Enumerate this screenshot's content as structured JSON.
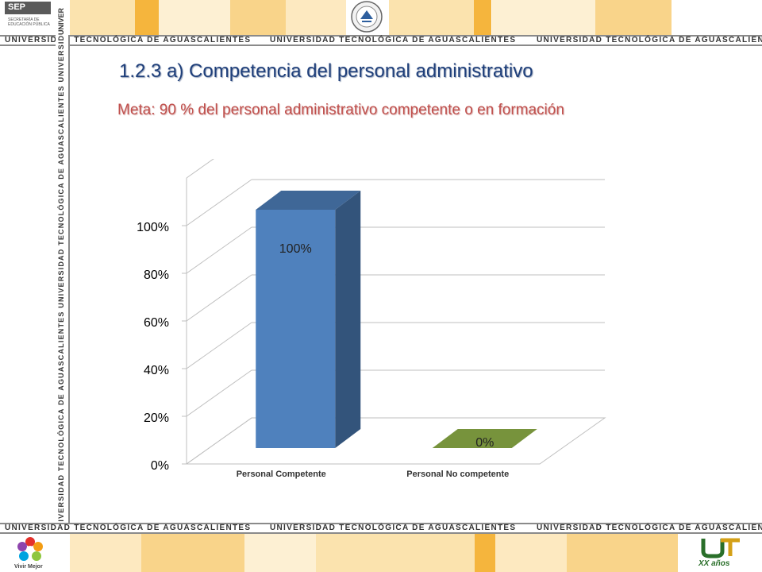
{
  "header": {
    "sep_logo_text": "SEP",
    "sep_logo_sub": "SECRETARÍA DE EDUCACIÓN PÚBLICA",
    "corner_word": "UNIVER"
  },
  "strip_text": "UNIVERSIDAD TECNOLÓGICA DE AGUASCALIENTES",
  "vertical_strip_text": "UNIVERSIDAD TECNOLÓGICA DE AGUASCALIENTES     UNIVERSIDAD TECNOLÓGICA DE AGUASCALIENTES     UNIVERSIDAD TECNOLÓGICA DE AGUASCALIENTES",
  "slide": {
    "title": "1.2.3 a) Competencia del personal administrativo",
    "subtitle": "Meta: 90 % del personal administrativo  competente o en formación"
  },
  "footer": {
    "left_logo_caption": "Vivir Mejor",
    "right_logo_caption": "XX años"
  },
  "colors": {
    "band_orange": "#f5b53d",
    "band_light": "#fbe3ae",
    "title": "#1f3f7a",
    "subtitle": "#c0504d",
    "bar_competente": "#4f81bd",
    "bar_no_competente": "#77933c"
  },
  "chart_data": {
    "type": "bar",
    "style": "3d-column",
    "categories": [
      "Personal Competente",
      "Personal No competente"
    ],
    "values": [
      100,
      0
    ],
    "data_labels": [
      "100%",
      "0%"
    ],
    "y_tick_labels": [
      "0%",
      "20%",
      "40%",
      "60%",
      "80%",
      "100%"
    ],
    "ylim": [
      0,
      100
    ],
    "grid": true,
    "legend": "none",
    "bar_colors": [
      "#4f81bd",
      "#77933c"
    ]
  }
}
